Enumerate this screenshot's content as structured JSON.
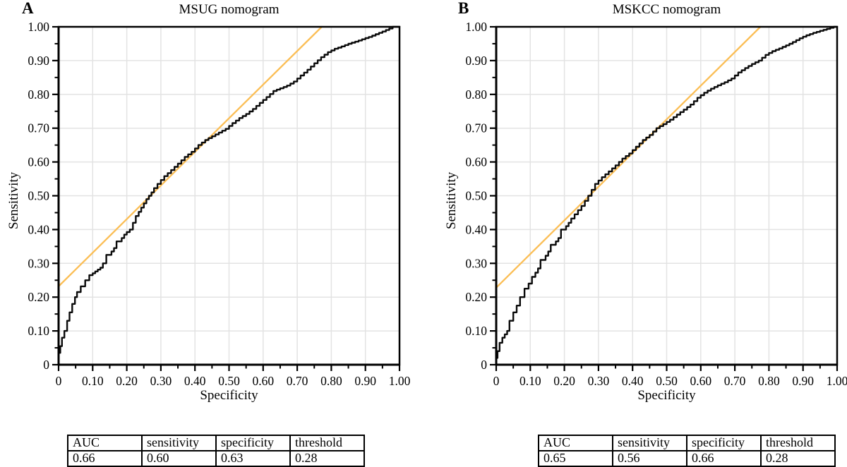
{
  "colors": {
    "curve": "#0a0a0a",
    "reference_line": "#FBBE55",
    "grid": "#E3E3E3",
    "frame": "#000000",
    "background": "#FFFFFF"
  },
  "axis_ticks": {
    "values": [
      0,
      0.1,
      0.2,
      0.3,
      0.4,
      0.5,
      0.6,
      0.7,
      0.8,
      0.9,
      1.0
    ],
    "labels": [
      "0",
      "0.10",
      "0.20",
      "0.30",
      "0.40",
      "0.50",
      "0.60",
      "0.70",
      "0.80",
      "0.90",
      "1.00"
    ],
    "minor_values": [
      0.05,
      0.15,
      0.25,
      0.35,
      0.45,
      0.55,
      0.65,
      0.75,
      0.85,
      0.95
    ]
  },
  "chart_data": [
    {
      "id": "A",
      "panel_label": "A",
      "type": "line",
      "title": "MSUG nomogram",
      "xlabel": "Specificity",
      "ylabel": "Sensitivity",
      "xlim": [
        0,
        1
      ],
      "ylim": [
        0,
        1
      ],
      "grid": true,
      "legend": "none",
      "series": [
        {
          "name": "ROC curve",
          "color": "#0a0a0a",
          "points": [
            [
              0,
              0
            ],
            [
              0.005,
              0.035
            ],
            [
              0.01,
              0.055
            ],
            [
              0.017,
              0.08
            ],
            [
              0.025,
              0.1
            ],
            [
              0.032,
              0.13
            ],
            [
              0.04,
              0.155
            ],
            [
              0.048,
              0.18
            ],
            [
              0.054,
              0.2
            ],
            [
              0.065,
              0.215
            ],
            [
              0.078,
              0.232
            ],
            [
              0.09,
              0.25
            ],
            [
              0.1,
              0.265
            ],
            [
              0.115,
              0.276
            ],
            [
              0.13,
              0.287
            ],
            [
              0.14,
              0.3
            ],
            [
              0.155,
              0.325
            ],
            [
              0.17,
              0.345
            ],
            [
              0.185,
              0.365
            ],
            [
              0.2,
              0.385
            ],
            [
              0.218,
              0.4
            ],
            [
              0.235,
              0.44
            ],
            [
              0.25,
              0.465
            ],
            [
              0.265,
              0.49
            ],
            [
              0.28,
              0.51
            ],
            [
              0.3,
              0.535
            ],
            [
              0.32,
              0.558
            ],
            [
              0.34,
              0.576
            ],
            [
              0.36,
              0.595
            ],
            [
              0.38,
              0.615
            ],
            [
              0.4,
              0.63
            ],
            [
              0.42,
              0.65
            ],
            [
              0.44,
              0.665
            ],
            [
              0.46,
              0.676
            ],
            [
              0.48,
              0.687
            ],
            [
              0.5,
              0.698
            ],
            [
              0.52,
              0.715
            ],
            [
              0.54,
              0.73
            ],
            [
              0.56,
              0.742
            ],
            [
              0.58,
              0.757
            ],
            [
              0.6,
              0.775
            ],
            [
              0.62,
              0.792
            ],
            [
              0.64,
              0.81
            ],
            [
              0.66,
              0.818
            ],
            [
              0.68,
              0.826
            ],
            [
              0.7,
              0.838
            ],
            [
              0.72,
              0.856
            ],
            [
              0.74,
              0.873
            ],
            [
              0.76,
              0.892
            ],
            [
              0.78,
              0.91
            ],
            [
              0.8,
              0.925
            ],
            [
              0.82,
              0.935
            ],
            [
              0.84,
              0.942
            ],
            [
              0.86,
              0.95
            ],
            [
              0.88,
              0.956
            ],
            [
              0.9,
              0.963
            ],
            [
              0.92,
              0.97
            ],
            [
              0.94,
              0.978
            ],
            [
              0.96,
              0.986
            ],
            [
              0.98,
              0.995
            ],
            [
              0.99,
              1.0
            ],
            [
              1.0,
              1.0
            ]
          ]
        },
        {
          "name": "reference line",
          "color": "#FBBE55",
          "points": [
            [
              0,
              0.232
            ],
            [
              0.772,
              1.0
            ]
          ]
        }
      ],
      "table": {
        "headers": [
          "AUC",
          "sensitivity",
          "specificity",
          "threshold"
        ],
        "values": [
          "0.66",
          "0.60",
          "0.63",
          "0.28"
        ]
      }
    },
    {
      "id": "B",
      "panel_label": "B",
      "type": "line",
      "title": "MSKCC nomogram",
      "xlabel": "Specificity",
      "ylabel": "Sensitivity",
      "xlim": [
        0,
        1
      ],
      "ylim": [
        0,
        1
      ],
      "grid": true,
      "legend": "none",
      "series": [
        {
          "name": "ROC curve",
          "color": "#0a0a0a",
          "points": [
            [
              0,
              0
            ],
            [
              0.004,
              0.02
            ],
            [
              0.01,
              0.04
            ],
            [
              0.018,
              0.065
            ],
            [
              0.025,
              0.08
            ],
            [
              0.032,
              0.09
            ],
            [
              0.039,
              0.1
            ],
            [
              0.05,
              0.13
            ],
            [
              0.06,
              0.155
            ],
            [
              0.07,
              0.175
            ],
            [
              0.083,
              0.2
            ],
            [
              0.095,
              0.225
            ],
            [
              0.105,
              0.24
            ],
            [
              0.115,
              0.26
            ],
            [
              0.13,
              0.285
            ],
            [
              0.145,
              0.31
            ],
            [
              0.16,
              0.335
            ],
            [
              0.175,
              0.355
            ],
            [
              0.19,
              0.375
            ],
            [
              0.205,
              0.4
            ],
            [
              0.22,
              0.42
            ],
            [
              0.24,
              0.445
            ],
            [
              0.26,
              0.47
            ],
            [
              0.28,
              0.5
            ],
            [
              0.3,
              0.535
            ],
            [
              0.32,
              0.555
            ],
            [
              0.34,
              0.572
            ],
            [
              0.36,
              0.59
            ],
            [
              0.38,
              0.61
            ],
            [
              0.4,
              0.625
            ],
            [
              0.42,
              0.645
            ],
            [
              0.44,
              0.665
            ],
            [
              0.46,
              0.68
            ],
            [
              0.48,
              0.7
            ],
            [
              0.5,
              0.712
            ],
            [
              0.52,
              0.725
            ],
            [
              0.54,
              0.74
            ],
            [
              0.56,
              0.755
            ],
            [
              0.58,
              0.77
            ],
            [
              0.6,
              0.79
            ],
            [
              0.62,
              0.805
            ],
            [
              0.64,
              0.817
            ],
            [
              0.66,
              0.827
            ],
            [
              0.68,
              0.836
            ],
            [
              0.7,
              0.847
            ],
            [
              0.72,
              0.865
            ],
            [
              0.74,
              0.878
            ],
            [
              0.76,
              0.89
            ],
            [
              0.78,
              0.9
            ],
            [
              0.8,
              0.917
            ],
            [
              0.82,
              0.928
            ],
            [
              0.84,
              0.936
            ],
            [
              0.86,
              0.945
            ],
            [
              0.88,
              0.955
            ],
            [
              0.9,
              0.966
            ],
            [
              0.92,
              0.975
            ],
            [
              0.94,
              0.982
            ],
            [
              0.96,
              0.988
            ],
            [
              0.98,
              0.994
            ],
            [
              1.0,
              1.0
            ]
          ]
        },
        {
          "name": "reference line",
          "color": "#FBBE55",
          "points": [
            [
              0,
              0.228
            ],
            [
              0.775,
              1.0
            ]
          ]
        }
      ],
      "table": {
        "headers": [
          "AUC",
          "sensitivity",
          "specificity",
          "threshold"
        ],
        "values": [
          "0.65",
          "0.56",
          "0.66",
          "0.28"
        ]
      }
    }
  ]
}
